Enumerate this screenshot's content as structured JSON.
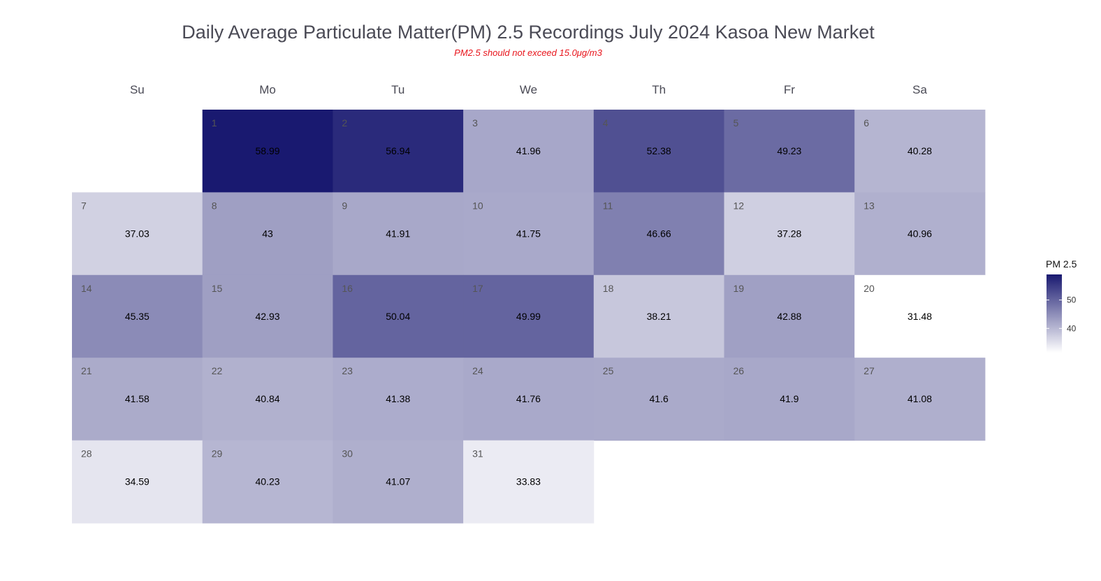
{
  "chart_data": {
    "type": "heatmap",
    "title": "Daily Average Particulate Matter(PM) 2.5 Recordings July 2024 Kasoa New Market",
    "subtitle": "PM2.5 should not exceed 15.0μg/m3",
    "weekdays": [
      "Su",
      "Mo",
      "Tu",
      "We",
      "Th",
      "Fr",
      "Sa"
    ],
    "first_weekday_index": 1,
    "days": [
      {
        "day": "1",
        "value": 58.99
      },
      {
        "day": "2",
        "value": 56.94
      },
      {
        "day": "3",
        "value": 41.96
      },
      {
        "day": "4",
        "value": 52.38
      },
      {
        "day": "5",
        "value": 49.23
      },
      {
        "day": "6",
        "value": 40.28
      },
      {
        "day": "7",
        "value": 37.03
      },
      {
        "day": "8",
        "value": 43
      },
      {
        "day": "9",
        "value": 41.91
      },
      {
        "day": "10",
        "value": 41.75
      },
      {
        "day": "11",
        "value": 46.66
      },
      {
        "day": "12",
        "value": 37.28
      },
      {
        "day": "13",
        "value": 40.96
      },
      {
        "day": "14",
        "value": 45.35
      },
      {
        "day": "15",
        "value": 42.93
      },
      {
        "day": "16",
        "value": 50.04
      },
      {
        "day": "17",
        "value": 49.99
      },
      {
        "day": "18",
        "value": 38.21
      },
      {
        "day": "19",
        "value": 42.88
      },
      {
        "day": "20",
        "value": 31.48
      },
      {
        "day": "21",
        "value": 41.58
      },
      {
        "day": "22",
        "value": 40.84
      },
      {
        "day": "23",
        "value": 41.38
      },
      {
        "day": "24",
        "value": 41.76
      },
      {
        "day": "25",
        "value": 41.6
      },
      {
        "day": "26",
        "value": 41.9
      },
      {
        "day": "27",
        "value": 41.08
      },
      {
        "day": "28",
        "value": 34.59
      },
      {
        "day": "29",
        "value": 40.23
      },
      {
        "day": "30",
        "value": 41.07
      },
      {
        "day": "31",
        "value": 33.83
      }
    ],
    "legend": {
      "title": "PM 2.5",
      "ticks": [
        40,
        50
      ],
      "range": [
        31.48,
        58.99
      ],
      "color_low": "#ffffff",
      "color_high": "#191970"
    }
  }
}
